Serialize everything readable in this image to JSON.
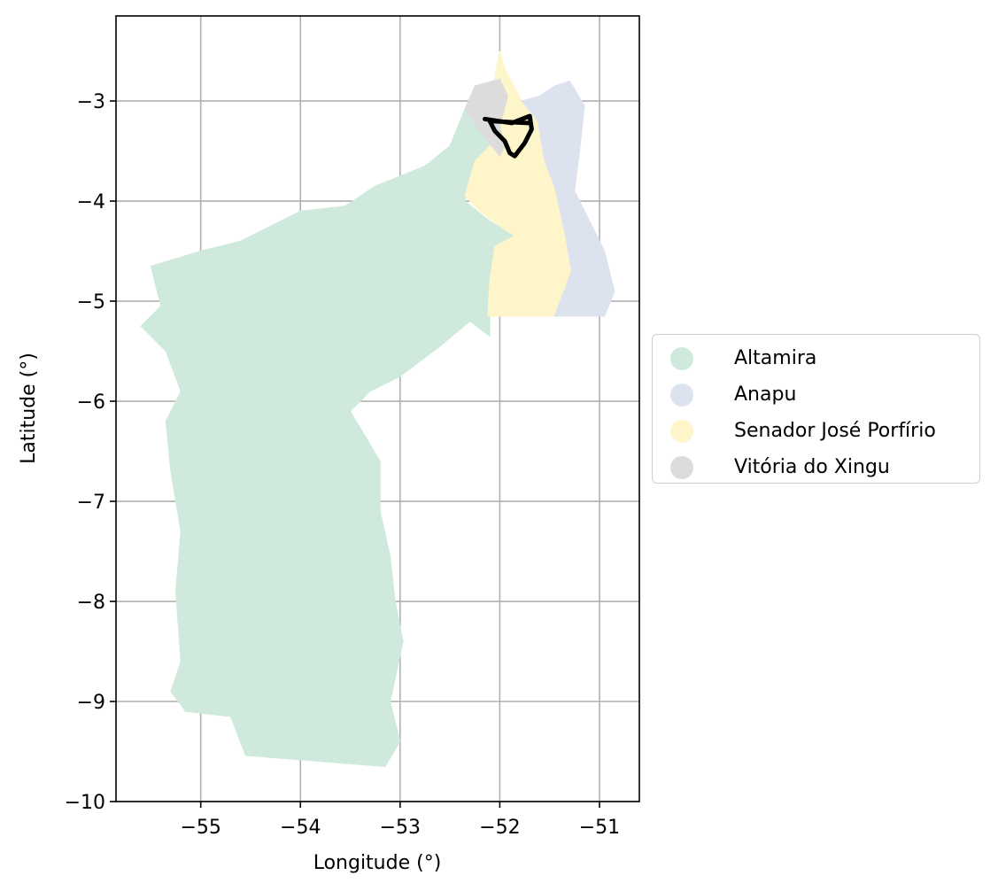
{
  "map": {
    "xlabel": "Longitude (°)",
    "ylabel": "Latitude (°)",
    "xlim": [
      -55.85,
      -50.6
    ],
    "ylim": [
      -10,
      -2.15
    ],
    "xticks": [
      -55,
      -54,
      -53,
      -52,
      -51
    ],
    "yticks": [
      -10,
      -9,
      -8,
      -7,
      -6,
      -5,
      -4,
      -3
    ],
    "xtick_labels": [
      "−55",
      "−54",
      "−53",
      "−52",
      "−51"
    ],
    "ytick_labels": [
      "−10",
      "−9",
      "−8",
      "−7",
      "−6",
      "−5",
      "−4",
      "−3"
    ],
    "grid": true
  },
  "legend": {
    "placement": "right, outside axes",
    "items": [
      {
        "label": "Altamira",
        "color": "#cfeadd"
      },
      {
        "label": "Anapu",
        "color": "#dde2ef"
      },
      {
        "label": "Senador José Porfírio",
        "color": "#fff5cb"
      },
      {
        "label": "Vitória do Xingu",
        "color": "#dcdcdc"
      }
    ]
  },
  "regions": [
    {
      "name": "Altamira",
      "color": "#cfeadd",
      "lonlat": [
        [
          -54.55,
          -9.54
        ],
        [
          -53.15,
          -9.65
        ],
        [
          -53.0,
          -9.4
        ],
        [
          -53.1,
          -9.0
        ],
        [
          -52.97,
          -8.4
        ],
        [
          -53.05,
          -8.0
        ],
        [
          -53.1,
          -7.55
        ],
        [
          -53.2,
          -7.1
        ],
        [
          -53.2,
          -6.6
        ],
        [
          -53.5,
          -6.1
        ],
        [
          -53.3,
          -5.9
        ],
        [
          -53.0,
          -5.75
        ],
        [
          -52.6,
          -5.45
        ],
        [
          -52.3,
          -5.2
        ],
        [
          -52.1,
          -5.35
        ],
        [
          -52.1,
          -4.8
        ],
        [
          -52.05,
          -4.5
        ],
        [
          -51.85,
          -4.35
        ],
        [
          -52.1,
          -4.2
        ],
        [
          -52.35,
          -4.0
        ],
        [
          -52.25,
          -3.7
        ],
        [
          -52.0,
          -3.4
        ],
        [
          -52.05,
          -3.1
        ],
        [
          -52.35,
          -3.08
        ],
        [
          -52.5,
          -3.45
        ],
        [
          -52.75,
          -3.65
        ],
        [
          -53.0,
          -3.75
        ],
        [
          -53.25,
          -3.85
        ],
        [
          -53.55,
          -4.05
        ],
        [
          -54.0,
          -4.1
        ],
        [
          -54.6,
          -4.4
        ],
        [
          -55.0,
          -4.5
        ],
        [
          -55.5,
          -4.65
        ],
        [
          -55.4,
          -5.05
        ],
        [
          -55.6,
          -5.25
        ],
        [
          -55.35,
          -5.5
        ],
        [
          -55.2,
          -5.9
        ],
        [
          -55.35,
          -6.2
        ],
        [
          -55.3,
          -6.7
        ],
        [
          -55.2,
          -7.3
        ],
        [
          -55.25,
          -7.9
        ],
        [
          -55.2,
          -8.6
        ],
        [
          -55.3,
          -8.9
        ],
        [
          -55.15,
          -9.1
        ],
        [
          -54.7,
          -9.15
        ]
      ]
    },
    {
      "name": "Senador José Porfírio",
      "color": "#fff5cb",
      "lonlat": [
        [
          -52.12,
          -5.15
        ],
        [
          -51.45,
          -5.15
        ],
        [
          -51.28,
          -4.7
        ],
        [
          -51.35,
          -4.3
        ],
        [
          -51.45,
          -3.85
        ],
        [
          -51.55,
          -3.6
        ],
        [
          -51.62,
          -3.2
        ],
        [
          -51.78,
          -3.0
        ],
        [
          -51.95,
          -2.68
        ],
        [
          -52.0,
          -2.5
        ],
        [
          -52.05,
          -2.75
        ],
        [
          -52.0,
          -3.15
        ],
        [
          -52.05,
          -3.4
        ],
        [
          -52.25,
          -3.6
        ],
        [
          -52.35,
          -3.95
        ],
        [
          -52.2,
          -4.1
        ],
        [
          -52.0,
          -4.25
        ],
        [
          -51.85,
          -4.35
        ],
        [
          -52.05,
          -4.45
        ],
        [
          -52.1,
          -4.8
        ]
      ]
    },
    {
      "name": "Anapu",
      "color": "#dde2ef",
      "lonlat": [
        [
          -51.45,
          -5.15
        ],
        [
          -50.95,
          -5.15
        ],
        [
          -50.85,
          -4.9
        ],
        [
          -50.95,
          -4.5
        ],
        [
          -51.1,
          -4.2
        ],
        [
          -51.25,
          -3.9
        ],
        [
          -51.2,
          -3.5
        ],
        [
          -51.15,
          -3.05
        ],
        [
          -51.3,
          -2.8
        ],
        [
          -51.45,
          -2.85
        ],
        [
          -51.6,
          -2.95
        ],
        [
          -51.78,
          -3.0
        ],
        [
          -51.62,
          -3.2
        ],
        [
          -51.55,
          -3.6
        ],
        [
          -51.45,
          -3.85
        ],
        [
          -51.35,
          -4.3
        ],
        [
          -51.28,
          -4.7
        ]
      ]
    },
    {
      "name": "Vitória do Xingu",
      "color": "#dcdcdc",
      "lonlat": [
        [
          -52.35,
          -3.08
        ],
        [
          -52.25,
          -2.85
        ],
        [
          -52.0,
          -2.78
        ],
        [
          -51.92,
          -2.95
        ],
        [
          -52.0,
          -3.25
        ],
        [
          -51.95,
          -3.45
        ],
        [
          -52.0,
          -3.55
        ],
        [
          -52.2,
          -3.3
        ]
      ]
    }
  ],
  "outline": {
    "color": "#000000",
    "lonlat": [
      [
        -52.15,
        -3.18
      ],
      [
        -52.02,
        -3.2
      ],
      [
        -51.88,
        -3.22
      ],
      [
        -51.7,
        -3.15
      ],
      [
        -51.68,
        -3.28
      ],
      [
        -51.75,
        -3.42
      ],
      [
        -51.85,
        -3.55
      ],
      [
        -51.9,
        -3.52
      ],
      [
        -51.95,
        -3.4
      ],
      [
        -52.05,
        -3.3
      ],
      [
        -52.1,
        -3.2
      ],
      [
        -51.72,
        -3.22
      ]
    ]
  }
}
